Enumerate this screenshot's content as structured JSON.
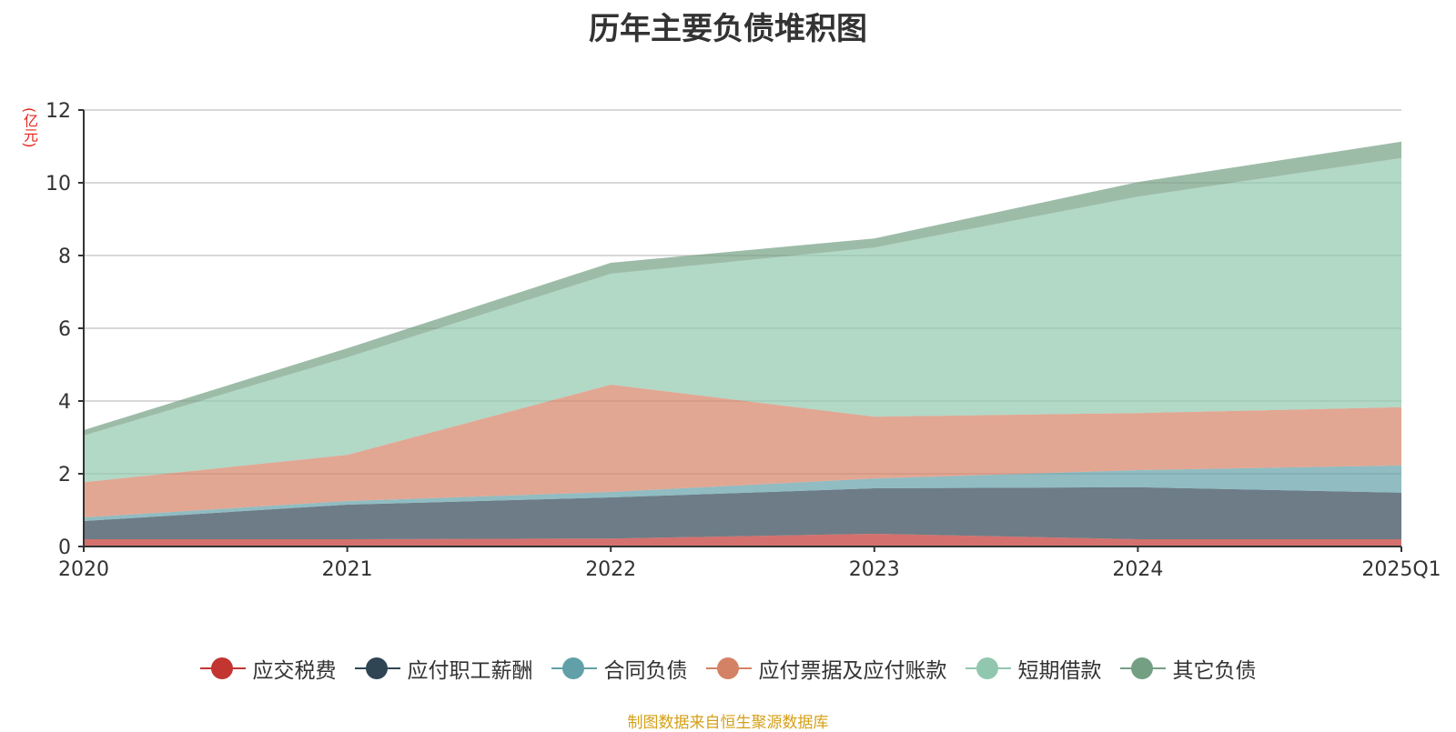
{
  "title": "历年主要负债堆积图",
  "unit": "(亿元)",
  "source": "制图数据来自恒生聚源数据库",
  "chart_data": {
    "type": "area",
    "stacked": true,
    "title": "历年主要负债堆积图",
    "ylabel": "(亿元)",
    "xlabel": "",
    "categories": [
      "2020",
      "2021",
      "2022",
      "2023",
      "2024",
      "2025Q1"
    ],
    "ylim": [
      0,
      12
    ],
    "yticks": [
      0,
      2,
      4,
      6,
      8,
      10,
      12
    ],
    "grid": true,
    "legend_position": "bottom",
    "series": [
      {
        "name": "应交税费",
        "color": "#c23531",
        "values": [
          0.2,
          0.2,
          0.22,
          0.35,
          0.2,
          0.2
        ]
      },
      {
        "name": "应付职工薪酬",
        "color": "#2f4554",
        "values": [
          0.5,
          0.95,
          1.13,
          1.25,
          1.43,
          1.28
        ]
      },
      {
        "name": "合同负债",
        "color": "#61a0a8",
        "values": [
          0.1,
          0.1,
          0.15,
          0.27,
          0.47,
          0.75
        ]
      },
      {
        "name": "应付票据及应付账款",
        "color": "#d48265",
        "values": [
          0.97,
          1.27,
          2.95,
          1.7,
          1.57,
          1.6
        ]
      },
      {
        "name": "短期借款",
        "color": "#91c7ae",
        "values": [
          1.28,
          2.68,
          3.05,
          4.65,
          5.95,
          6.85
        ]
      },
      {
        "name": "其它负债",
        "color": "#749f83",
        "values": [
          0.15,
          0.25,
          0.3,
          0.25,
          0.4,
          0.45
        ]
      }
    ]
  }
}
